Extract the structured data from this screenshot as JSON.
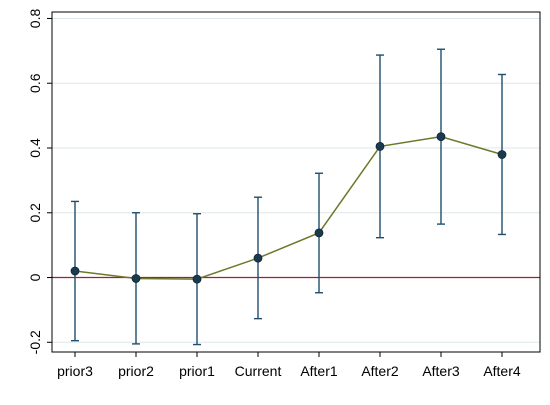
{
  "chart_data": {
    "type": "line",
    "title": "",
    "xlabel": "",
    "ylabel": "",
    "categories": [
      "prior3",
      "prior2",
      "prior1",
      "Current",
      "After1",
      "After2",
      "After3",
      "After4"
    ],
    "series": [
      {
        "values": [
          0.02,
          -0.003,
          -0.005,
          0.06,
          0.138,
          0.405,
          0.435,
          0.38
        ],
        "ci_lower": [
          -0.195,
          -0.205,
          -0.207,
          -0.127,
          -0.047,
          0.123,
          0.165,
          0.133
        ],
        "ci_upper": [
          0.235,
          0.2,
          0.197,
          0.248,
          0.322,
          0.687,
          0.705,
          0.627
        ]
      }
    ],
    "yticks": [
      "-0.2",
      "0",
      "0.2",
      "0.4",
      "0.6",
      "0.8"
    ],
    "ytick_values": [
      -0.2,
      0,
      0.2,
      0.4,
      0.6,
      0.8
    ],
    "ylim": [
      -0.23,
      0.82
    ],
    "reference_line_y": 0,
    "grid": "horizontal",
    "colors": {
      "line": "#6b7a2a",
      "marker": "#1a3a50",
      "errorbar": "#1f4e6e",
      "reference": "#b0182d",
      "grid": "#dde8ec",
      "axis": "#000000"
    }
  }
}
